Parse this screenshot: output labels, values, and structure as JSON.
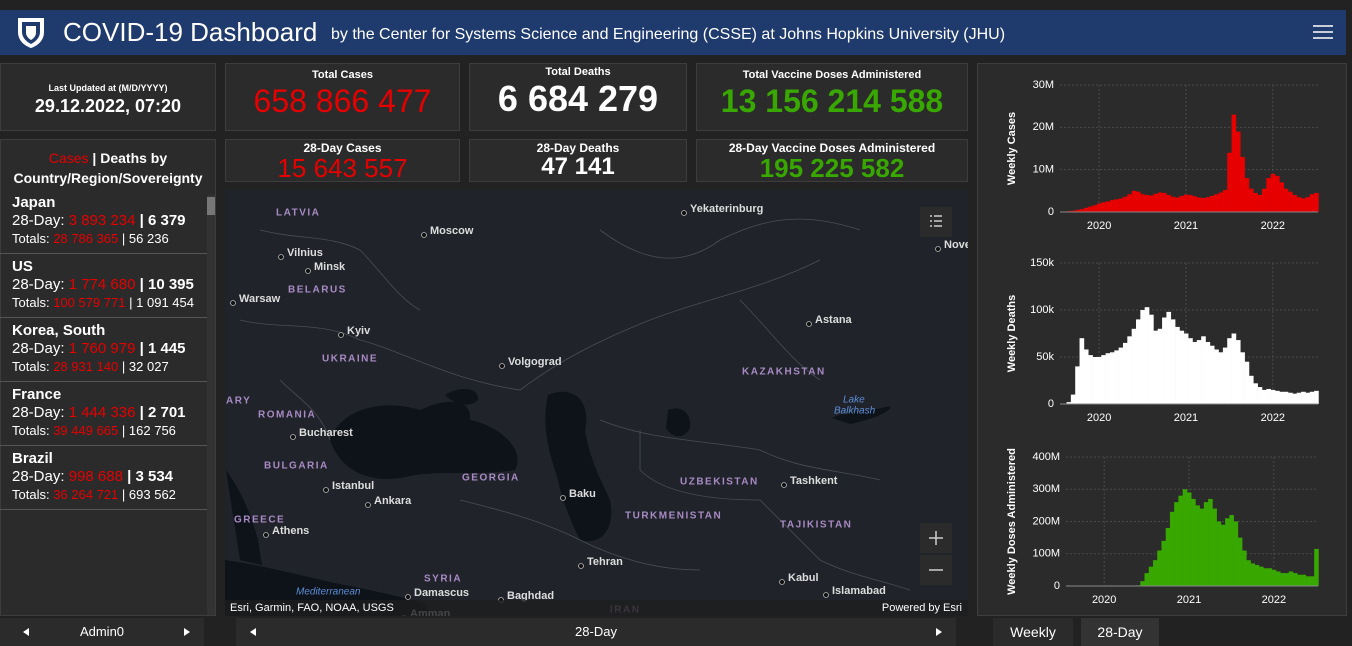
{
  "header": {
    "title": "COVID-19 Dashboard",
    "subtitle": "by the Center for Systems Science and Engineering (CSSE) at Johns Hopkins University (JHU)"
  },
  "last_updated": {
    "label": "Last Updated at (M/D/YYYY)",
    "value": "29.12.2022, 07:20"
  },
  "totals": [
    {
      "label": "Total Cases",
      "value": "658 866 477"
    },
    {
      "label": "Total Deaths",
      "value": "6 684 279"
    },
    {
      "label": "Total Vaccine Doses Administered",
      "value": "13 156 214 588"
    }
  ],
  "recent": [
    {
      "label": "28-Day Cases",
      "value": "15 643 557"
    },
    {
      "label": "28-Day Deaths",
      "value": "47 141"
    },
    {
      "label": "28-Day Vaccine Doses Administered",
      "value": "195 225 582"
    }
  ],
  "country_list": {
    "title_cases": "Cases",
    "separator": "|",
    "title_rest": "Deaths by Country/Region/Sovereignty",
    "recent_label": "28-Day:",
    "totals_label": "Totals:",
    "items": [
      {
        "name": "Japan",
        "recent_cases": "3 893 234",
        "recent_deaths": "6 379",
        "cases": "28 786 365",
        "deaths": "56 236"
      },
      {
        "name": "US",
        "recent_cases": "1 774 680",
        "recent_deaths": "10 395",
        "cases": "100 579 771",
        "deaths": "1 091 454"
      },
      {
        "name": "Korea, South",
        "recent_cases": "1 760 979",
        "recent_deaths": "1 445",
        "cases": "28 931 140",
        "deaths": "32 027"
      },
      {
        "name": "France",
        "recent_cases": "1 444 336",
        "recent_deaths": "2 701",
        "cases": "39 449 665",
        "deaths": "162 756"
      },
      {
        "name": "Brazil",
        "recent_cases": "998 688",
        "recent_deaths": "3 534",
        "cases": "36 264 721",
        "deaths": "693 562"
      }
    ]
  },
  "map": {
    "labels": [
      "LATVIA",
      "Vilnius",
      "Minsk",
      "BELARUS",
      "Warsaw",
      "Moscow",
      "Yekaterinburg",
      "Nove",
      "Kyiv",
      "UKRAINE",
      "Volgograd",
      "Astana",
      "KAZAKHSTAN",
      "Lake",
      "Balkhash",
      "ARY",
      "ROMANIA",
      "Bucharest",
      "BULGARIA",
      "Istanbul",
      "Ankara",
      "GEORGIA",
      "Baku",
      "UZBEKISTAN",
      "Tashkent",
      "TURKMENISTAN",
      "TAJIKISTAN",
      "GREECE",
      "Athens",
      "SYRIA",
      "Tehran",
      "Kabul",
      "Islamabad",
      "Mediterranean",
      "Damascus",
      "Baghdad",
      "IRAN",
      "Amman"
    ],
    "attribution": "Esri, Garmin, FAO, NOAA, USGS",
    "powered_by": "Powered by Esri"
  },
  "footer": {
    "list_tab": "Admin0",
    "map_tab": "28-Day",
    "chart_tabs": [
      "Weekly",
      "28-Day"
    ]
  },
  "chart_data": [
    {
      "type": "bar",
      "y_label": "Weekly Cases",
      "color": "#e60000",
      "x": [
        2019.6,
        2019.65,
        2019.7,
        2019.75,
        2019.8,
        2019.85,
        2019.9,
        2019.95,
        2020,
        2020.05,
        2020.1,
        2020.15,
        2020.2,
        2020.25,
        2020.3,
        2020.35,
        2020.4,
        2020.45,
        2020.5,
        2020.55,
        2020.6,
        2020.65,
        2020.7,
        2020.75,
        2020.8,
        2020.85,
        2020.9,
        2020.95,
        2021,
        2021.05,
        2021.1,
        2021.15,
        2021.2,
        2021.25,
        2021.3,
        2021.35,
        2021.4,
        2021.45,
        2021.5,
        2021.55,
        2021.6,
        2021.65,
        2021.7,
        2021.75,
        2021.8,
        2021.85,
        2021.9,
        2021.95,
        2022,
        2022.05,
        2022.1,
        2022.15,
        2022.2,
        2022.25,
        2022.3,
        2022.35,
        2022.4,
        2022.45,
        2022.5
      ],
      "values": [
        100000,
        200000,
        300000,
        500000,
        700000,
        1000000,
        1300000,
        1600000,
        2000000,
        2300000,
        2500000,
        2800000,
        3000000,
        3200000,
        3600000,
        4200000,
        5000000,
        4800000,
        4200000,
        4000000,
        3900000,
        4300000,
        4600000,
        4500000,
        4000000,
        3600000,
        3400000,
        3800000,
        4100000,
        4000000,
        3700000,
        3400000,
        3300000,
        3500000,
        3800000,
        4200000,
        4600000,
        5200000,
        14000000,
        23000000,
        19000000,
        13000000,
        8000000,
        5500000,
        4500000,
        4000000,
        5500000,
        8000000,
        9000000,
        8500000,
        7000000,
        5500000,
        4800000,
        4000000,
        3500000,
        3200000,
        3500000,
        4200000,
        4500000
      ],
      "xlim": [
        2019.55,
        2022.52
      ],
      "ylim": [
        0,
        30000000
      ],
      "xticks": [
        2020,
        2021,
        2022
      ],
      "yticks": [
        0,
        {
          "value": 10000000,
          "label": "10M"
        },
        {
          "value": 20000000,
          "label": "20M"
        },
        {
          "value": 30000000,
          "label": "30M"
        }
      ],
      "grid": true
    },
    {
      "type": "bar",
      "y_label": "Weekly Deaths",
      "color": "#ffffff",
      "x": [
        2019.6,
        2019.65,
        2019.7,
        2019.75,
        2019.8,
        2019.85,
        2019.9,
        2019.95,
        2020,
        2020.05,
        2020.1,
        2020.15,
        2020.2,
        2020.25,
        2020.3,
        2020.35,
        2020.4,
        2020.45,
        2020.5,
        2020.55,
        2020.6,
        2020.65,
        2020.7,
        2020.75,
        2020.8,
        2020.85,
        2020.9,
        2020.95,
        2021,
        2021.05,
        2021.1,
        2021.15,
        2021.2,
        2021.25,
        2021.3,
        2021.35,
        2021.4,
        2021.45,
        2021.5,
        2021.55,
        2021.6,
        2021.65,
        2021.7,
        2021.75,
        2021.8,
        2021.85,
        2021.9,
        2021.95,
        2022,
        2022.05,
        2022.1,
        2022.15,
        2022.2,
        2022.25,
        2022.3,
        2022.35,
        2022.4,
        2022.45,
        2022.5
      ],
      "values": [
        0,
        2000,
        10000,
        40000,
        70000,
        58000,
        52000,
        50000,
        50000,
        52000,
        54000,
        55000,
        57000,
        60000,
        65000,
        72000,
        80000,
        90000,
        100000,
        103000,
        95000,
        78000,
        80000,
        92000,
        98000,
        90000,
        82000,
        78000,
        75000,
        70000,
        66000,
        68000,
        72000,
        66000,
        62000,
        58000,
        55000,
        60000,
        70000,
        75000,
        68000,
        55000,
        45000,
        30000,
        22000,
        18000,
        15000,
        16000,
        15000,
        14000,
        13000,
        13000,
        12000,
        11000,
        12000,
        13000,
        12000,
        13000,
        14000
      ],
      "xlim": [
        2019.55,
        2022.52
      ],
      "ylim": [
        0,
        150000
      ],
      "xticks": [
        2020,
        2021,
        2022
      ],
      "yticks": [
        0,
        {
          "value": 50000,
          "label": "50k"
        },
        {
          "value": 100000,
          "label": "100k"
        },
        {
          "value": 150000,
          "label": "150k"
        }
      ],
      "grid": true
    },
    {
      "type": "bar",
      "y_label": "Weekly Doses Administered",
      "color": "#38a800",
      "x": [
        2019.6,
        2019.65,
        2019.7,
        2019.75,
        2019.8,
        2019.85,
        2019.9,
        2019.95,
        2020,
        2020.05,
        2020.1,
        2020.15,
        2020.2,
        2020.25,
        2020.3,
        2020.35,
        2020.4,
        2020.45,
        2020.5,
        2020.55,
        2020.6,
        2020.65,
        2020.7,
        2020.75,
        2020.8,
        2020.85,
        2020.9,
        2020.95,
        2021,
        2021.05,
        2021.1,
        2021.15,
        2021.2,
        2021.25,
        2021.3,
        2021.35,
        2021.4,
        2021.45,
        2021.5,
        2021.55,
        2021.6,
        2021.65,
        2021.7,
        2021.75,
        2021.8,
        2021.85,
        2021.9,
        2021.95,
        2022,
        2022.05,
        2022.1,
        2022.15,
        2022.2,
        2022.25,
        2022.3,
        2022.35,
        2022.4,
        2022.45,
        2022.5
      ],
      "values": [
        0,
        0,
        0,
        0,
        0,
        0,
        0,
        0,
        0,
        0,
        0,
        0,
        0,
        0,
        0,
        0,
        2000000,
        15000000,
        40000000,
        60000000,
        80000000,
        110000000,
        140000000,
        180000000,
        230000000,
        260000000,
        280000000,
        300000000,
        290000000,
        270000000,
        250000000,
        240000000,
        260000000,
        270000000,
        240000000,
        200000000,
        190000000,
        210000000,
        220000000,
        200000000,
        150000000,
        110000000,
        80000000,
        70000000,
        65000000,
        60000000,
        55000000,
        55000000,
        50000000,
        45000000,
        40000000,
        40000000,
        45000000,
        40000000,
        35000000,
        35000000,
        30000000,
        30000000,
        115000000
      ],
      "xlim": [
        2019.55,
        2022.52
      ],
      "ylim": [
        0,
        400000000
      ],
      "xticks": [
        2020,
        2021,
        2022
      ],
      "yticks": [
        0,
        {
          "value": 100000000,
          "label": "100M"
        },
        {
          "value": 200000000,
          "label": "200M"
        },
        {
          "value": 300000000,
          "label": "300M"
        },
        {
          "value": 400000000,
          "label": "400M"
        }
      ],
      "grid": true
    }
  ]
}
